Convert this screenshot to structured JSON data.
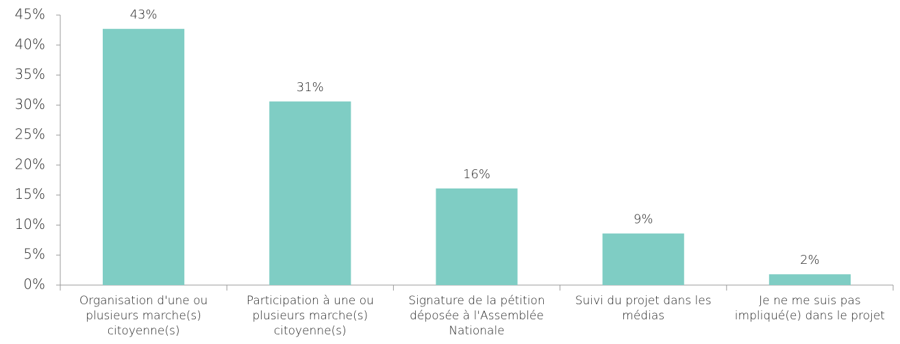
{
  "chart_data": {
    "type": "bar",
    "categories": [
      "Organisation d'une ou plusieurs marche(s) citoyenne(s)",
      "Participation à une ou plusieurs marche(s) citoyenne(s)",
      "Signature de la pétition déposée à l'Assemblée Nationale",
      "Suivi du projet dans les médias",
      "Je ne me suis pas impliqué(e) dans le projet"
    ],
    "values": [
      42.7,
      30.6,
      16.1,
      8.6,
      1.8
    ],
    "value_labels": [
      "43%",
      "31%",
      "16%",
      "9%",
      "2%"
    ],
    "color": "#7fcdc4",
    "ylim": [
      0,
      45
    ],
    "yticks": [
      {
        "value": 0,
        "label": "0%"
      },
      {
        "value": 5,
        "label": "5%"
      },
      {
        "value": 10,
        "label": "10%"
      },
      {
        "value": 15,
        "label": "15%"
      },
      {
        "value": 20,
        "label": "20%"
      },
      {
        "value": 25,
        "label": "25%"
      },
      {
        "value": 30,
        "label": "30%"
      },
      {
        "value": 35,
        "label": "35%"
      },
      {
        "value": 40,
        "label": "40%"
      },
      {
        "value": 45,
        "label": "45%"
      }
    ],
    "grid": false
  }
}
